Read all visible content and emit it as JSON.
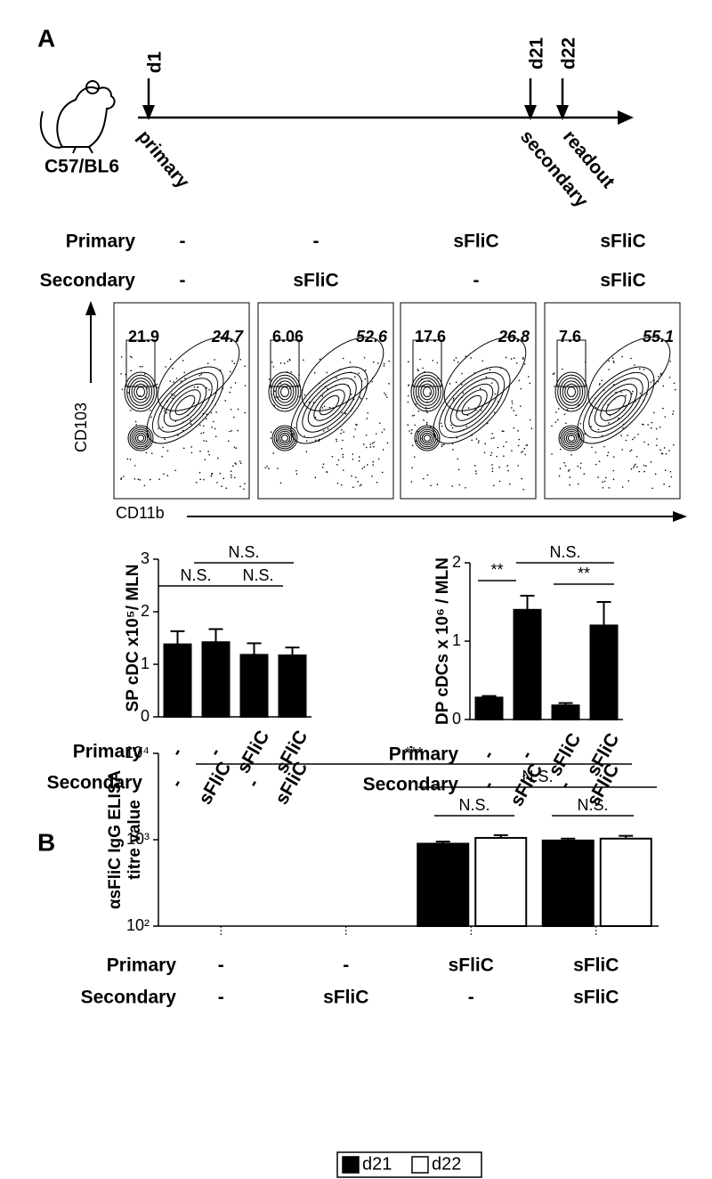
{
  "figure": {
    "panel_a": {
      "label": "A",
      "strain": "C57/BL6",
      "timeline": {
        "days": [
          "d1",
          "d21",
          "d22"
        ],
        "events": [
          "primary",
          "secondary",
          "readout"
        ]
      },
      "conditions": {
        "rows": [
          {
            "name": "Primary",
            "labels": [
              "-",
              "-",
              "sFliC",
              "sFliC"
            ]
          },
          {
            "name": "Secondary",
            "labels": [
              "-",
              "sFliC",
              "-",
              "sFliC"
            ]
          }
        ]
      },
      "flow": {
        "y_axis": "CD103",
        "x_axis": "CD11b",
        "plots": [
          {
            "left": 21.9,
            "right": 24.7
          },
          {
            "left": 6.06,
            "right": 52.6
          },
          {
            "left": 17.6,
            "right": 26.8
          },
          {
            "left": 7.6,
            "right": 55.1
          }
        ]
      }
    },
    "panel_b": {
      "label": "B"
    }
  },
  "chart_data": [
    {
      "type": "bar",
      "ylabel": [
        "SP cDC  x10⁵/ MLN"
      ],
      "category_rows": [
        {
          "name": "Primary",
          "labels": [
            "-",
            "-",
            "sFliC",
            "sFliC"
          ]
        },
        {
          "name": "Secondary",
          "labels": [
            "-",
            "sFliC",
            "-",
            "sFliC"
          ]
        }
      ],
      "series": [
        {
          "color": "#000000",
          "values": [
            1.38,
            1.42,
            1.18,
            1.17
          ],
          "errors": [
            0.25,
            0.25,
            0.22,
            0.15
          ]
        }
      ],
      "ylim": [
        0,
        3
      ],
      "yticks": [
        0,
        1,
        2,
        3
      ],
      "annotations": [
        "N.S.",
        "N.S.",
        "N.S."
      ]
    },
    {
      "type": "bar",
      "ylabel": [
        "DP cDCs x 10⁶ / MLN"
      ],
      "category_rows": [
        {
          "name": "Primary",
          "labels": [
            "-",
            "-",
            "sFliC",
            "sFliC"
          ]
        },
        {
          "name": "Secondary",
          "labels": [
            "-",
            "sFliC",
            "-",
            "sFliC"
          ]
        }
      ],
      "series": [
        {
          "color": "#000000",
          "values": [
            0.28,
            1.4,
            0.18,
            1.2
          ],
          "errors": [
            0.02,
            0.18,
            0.03,
            0.3
          ]
        }
      ],
      "ylim": [
        0,
        2
      ],
      "yticks": [
        0,
        1,
        2
      ],
      "annotations": [
        "**",
        "N.S.",
        "**"
      ]
    },
    {
      "type": "bar",
      "ylabel": [
        "αsFliC IgG ELISA",
        "titre value"
      ],
      "log_scale": true,
      "category_rows": [
        {
          "name": "Primary",
          "labels": [
            "-",
            "-",
            "sFliC",
            "sFliC"
          ]
        },
        {
          "name": "Secondary",
          "labels": [
            "-",
            "sFliC",
            "-",
            "sFliC"
          ]
        }
      ],
      "series": [
        {
          "name": "d21",
          "color": "#000000",
          "values": [
            null,
            null,
            900,
            980
          ],
          "errors": [
            null,
            null,
            50,
            50
          ]
        },
        {
          "name": "d22",
          "color": "#ffffff",
          "values": [
            null,
            null,
            1050,
            1030
          ],
          "errors": [
            null,
            null,
            80,
            80
          ]
        }
      ],
      "ylim": [
        100,
        10000
      ],
      "yticks": [
        {
          "value": 100,
          "label": "10²"
        },
        {
          "value": 1000,
          "label": "10³"
        },
        {
          "value": 10000,
          "label": "10⁴"
        }
      ],
      "annotations": [
        "***",
        "N.S.",
        "N.S.",
        "N.S."
      ],
      "legend": "bottom"
    }
  ]
}
